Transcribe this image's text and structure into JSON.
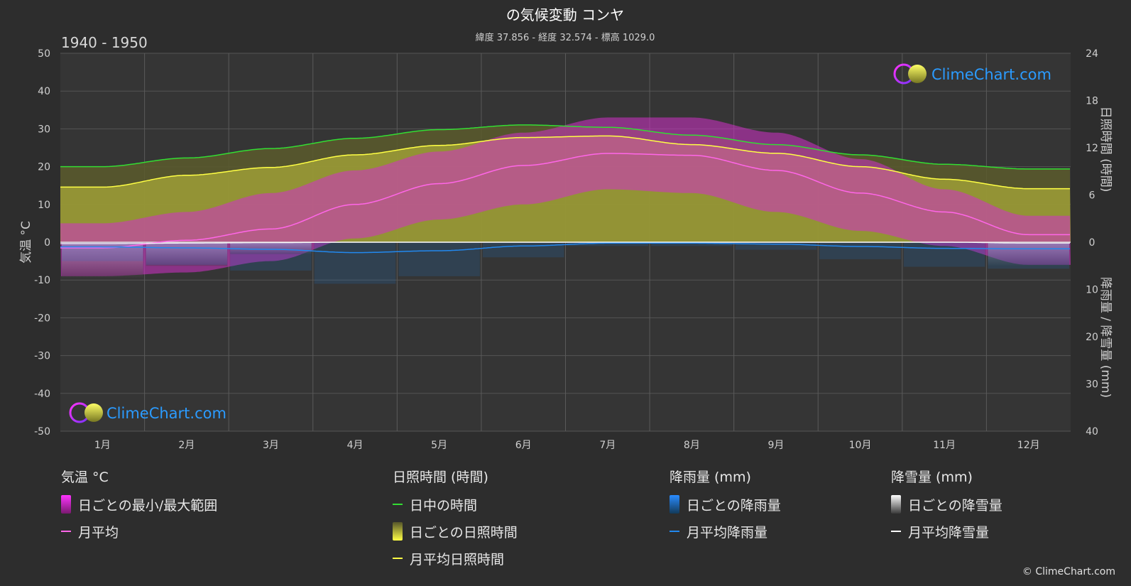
{
  "title": "の気候変動 コンヤ",
  "subtitle": "緯度 37.856 - 経度 32.574 - 標高 1029.0",
  "period": "1940 - 1950",
  "watermark": "ClimeChart.com",
  "copyright": "© ClimeChart.com",
  "colors": {
    "background": "#2d2d2d",
    "plot_background": "#353535",
    "temp_range": "#d22fc8",
    "temp_avg": "#ff66e8",
    "daylight": "#33dd33",
    "sunshine_fill": "#a8a838",
    "sunshine_avg": "#ffff44",
    "rain": "#1e78d0",
    "rain_avg": "#2288ee",
    "snow": "#9a9a9a",
    "snow_avg": "#ffffff",
    "logo": "#2b9bff"
  },
  "legend": {
    "temperature": {
      "heading": "気温 °C",
      "range_label": "日ごとの最小/最大範囲",
      "avg_label": "月平均"
    },
    "sunshine": {
      "heading": "日照時間 (時間)",
      "daylight_label": "日中の時間",
      "daily_label": "日ごとの日照時間",
      "avg_label": "月平均日照時間"
    },
    "rain": {
      "heading": "降雨量 (mm)",
      "daily_label": "日ごとの降雨量",
      "avg_label": "月平均降雨量"
    },
    "snow": {
      "heading": "降雪量 (mm)",
      "daily_label": "日ごとの降雪量",
      "avg_label": "月平均降雪量"
    }
  },
  "chart_data": {
    "type": "area",
    "categories": [
      "1月",
      "2月",
      "3月",
      "4月",
      "5月",
      "6月",
      "7月",
      "8月",
      "9月",
      "10月",
      "11月",
      "12月"
    ],
    "y_left": {
      "label": "気温 °C",
      "range": [
        -50,
        50
      ],
      "ticks": [
        50,
        40,
        30,
        20,
        10,
        0,
        -10,
        -20,
        -30,
        -40,
        -50
      ]
    },
    "y_right_top": {
      "label": "日照時間 (時間)",
      "range": [
        0,
        24
      ],
      "ticks": [
        24,
        18,
        12,
        6,
        0
      ]
    },
    "y_right_bottom": {
      "label": "降雨量 / 降雪量 (mm)",
      "range": [
        0,
        40
      ],
      "ticks": [
        0,
        10,
        20,
        30,
        40
      ]
    },
    "grid": true,
    "series": [
      {
        "name": "日中の時間",
        "axis": "sunshine_hours",
        "values": [
          9.6,
          10.7,
          11.9,
          13.2,
          14.3,
          14.9,
          14.6,
          13.6,
          12.4,
          11.1,
          9.9,
          9.3
        ]
      },
      {
        "name": "月平均日照時間",
        "axis": "sunshine_hours",
        "values": [
          7.0,
          8.5,
          9.5,
          11.1,
          12.3,
          13.3,
          13.5,
          12.4,
          11.3,
          9.6,
          8.0,
          6.8
        ]
      },
      {
        "name": "月平均",
        "axis": "temperature_c",
        "values": [
          -1.5,
          0.5,
          3.5,
          10.0,
          15.5,
          20.3,
          23.5,
          23.0,
          19.0,
          13.0,
          8.0,
          2.0
        ]
      },
      {
        "name": "日ごとの最小/最大範囲 (最大)",
        "axis": "temperature_c",
        "values": [
          5,
          8,
          13,
          19,
          24,
          29,
          33,
          33,
          29,
          22,
          14,
          7
        ]
      },
      {
        "name": "日ごとの最小/最大範囲 (最小)",
        "axis": "temperature_c",
        "values": [
          -9,
          -8,
          -5,
          1,
          6,
          10,
          14,
          13,
          8,
          3,
          -1,
          -6
        ]
      },
      {
        "name": "月平均降雨量",
        "axis": "precip_mm",
        "values": [
          1.0,
          1.2,
          1.5,
          2.2,
          1.8,
          0.8,
          0.2,
          0.2,
          0.4,
          0.9,
          1.3,
          1.4
        ]
      },
      {
        "name": "月平均降雪量",
        "axis": "precip_mm",
        "values": [
          0.3,
          0.2,
          0.1,
          0.0,
          0.0,
          0.0,
          0.0,
          0.0,
          0.0,
          0.0,
          0.0,
          0.2
        ]
      }
    ]
  }
}
